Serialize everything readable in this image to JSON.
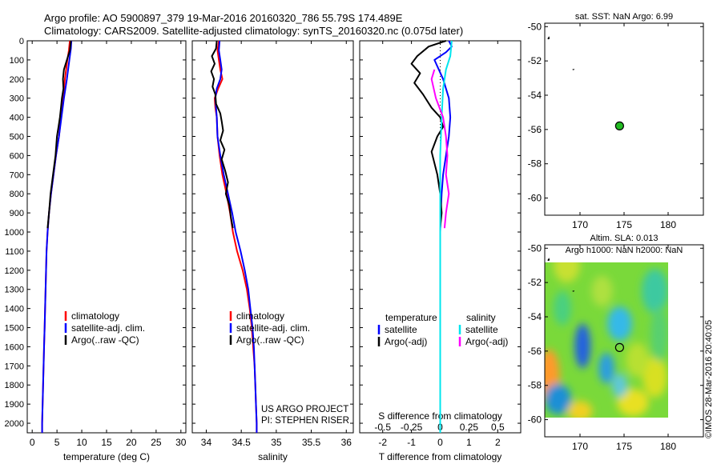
{
  "header": {
    "line1": "Argo profile: AO 5900897_379 19-Mar-2016 20160320_786 55.79S 174.489E",
    "line2": "Climatology: CARS2009. Satellite-adjusted climatology: synTS_20160320.nc (0.075d later)"
  },
  "side_note": "©IMOS 28-Mar-2016 20:40:05",
  "project": {
    "line1": "US ARGO PROJECT",
    "line2": "PI: STEPHEN RISER"
  },
  "colors": {
    "climatology": "#ff0000",
    "satellite": "#0000ff",
    "argo": "#000000",
    "salinity_satellite": "#00e5ee",
    "salinity_argo": "#ff00ff",
    "float_marker": "#22bb22"
  },
  "chart_data": [
    {
      "id": "temperature",
      "type": "line",
      "xlabel": "temperature (deg C)",
      "xlim": [
        -1,
        31
      ],
      "ylim": [
        2050,
        0
      ],
      "xticks": [
        0,
        5,
        10,
        15,
        20,
        25,
        30
      ],
      "yticks": [
        0,
        100,
        200,
        300,
        400,
        500,
        600,
        700,
        800,
        900,
        1000,
        1100,
        1200,
        1300,
        1400,
        1500,
        1600,
        1700,
        1800,
        1900,
        2000
      ],
      "legend": [
        "climatology",
        "satellite-adj. clim.",
        "Argo(..raw -QC)"
      ],
      "series": [
        {
          "name": "climatology",
          "color": "#ff0000",
          "points": [
            [
              7.6,
              0
            ],
            [
              7.4,
              50
            ],
            [
              7.1,
              100
            ],
            [
              6.6,
              200
            ],
            [
              6.2,
              300
            ],
            [
              5.8,
              400
            ],
            [
              5.4,
              500
            ],
            [
              4.8,
              600
            ],
            [
              4.3,
              700
            ],
            [
              3.8,
              800
            ],
            [
              3.4,
              900
            ],
            [
              3.1,
              1000
            ],
            [
              2.9,
              1100
            ],
            [
              2.8,
              1200
            ],
            [
              2.7,
              1300
            ],
            [
              2.6,
              1400
            ],
            [
              2.5,
              1500
            ],
            [
              2.4,
              1600
            ],
            [
              2.3,
              1700
            ],
            [
              2.2,
              1800
            ],
            [
              2.1,
              1900
            ],
            [
              2.0,
              2000
            ],
            [
              2.0,
              2050
            ]
          ]
        },
        {
          "name": "satellite-adj. clim.",
          "color": "#0000ff",
          "points": [
            [
              7.9,
              0
            ],
            [
              7.8,
              40
            ],
            [
              7.5,
              100
            ],
            [
              7.0,
              200
            ],
            [
              6.4,
              300
            ],
            [
              5.9,
              400
            ],
            [
              5.4,
              500
            ],
            [
              4.8,
              600
            ],
            [
              4.3,
              700
            ],
            [
              3.8,
              800
            ],
            [
              3.4,
              900
            ],
            [
              3.1,
              1000
            ],
            [
              2.9,
              1100
            ],
            [
              2.8,
              1200
            ],
            [
              2.7,
              1300
            ],
            [
              2.6,
              1400
            ],
            [
              2.5,
              1500
            ],
            [
              2.4,
              1600
            ],
            [
              2.3,
              1700
            ],
            [
              2.2,
              1800
            ],
            [
              2.1,
              1900
            ],
            [
              2.0,
              2000
            ],
            [
              2.0,
              2050
            ]
          ]
        },
        {
          "name": "Argo(..raw -QC)",
          "color": "#000000",
          "points": [
            [
              7.8,
              0
            ],
            [
              7.6,
              50
            ],
            [
              7.0,
              100
            ],
            [
              6.4,
              150
            ],
            [
              6.2,
              200
            ],
            [
              6.3,
              250
            ],
            [
              6.0,
              300
            ],
            [
              5.8,
              350
            ],
            [
              5.6,
              400
            ],
            [
              5.3,
              450
            ],
            [
              5.0,
              500
            ],
            [
              4.7,
              600
            ],
            [
              4.2,
              700
            ],
            [
              3.7,
              800
            ],
            [
              3.4,
              900
            ],
            [
              3.1,
              980
            ]
          ]
        }
      ]
    },
    {
      "id": "salinity",
      "type": "line",
      "xlabel": "salinity",
      "xlim": [
        33.8,
        36.1
      ],
      "ylim": [
        2050,
        0
      ],
      "xticks": [
        34,
        34.5,
        35,
        35.5,
        36
      ],
      "legend": [
        "climatology",
        "satellite-adj. clim.",
        "Argo(..raw -QC)"
      ],
      "series": [
        {
          "name": "climatology",
          "color": "#ff0000",
          "points": [
            [
              34.18,
              0
            ],
            [
              34.16,
              50
            ],
            [
              34.18,
              100
            ],
            [
              34.2,
              150
            ],
            [
              34.23,
              200
            ],
            [
              34.17,
              250
            ],
            [
              34.12,
              300
            ],
            [
              34.13,
              350
            ],
            [
              34.15,
              400
            ],
            [
              34.16,
              500
            ],
            [
              34.19,
              600
            ],
            [
              34.23,
              700
            ],
            [
              34.29,
              800
            ],
            [
              34.34,
              900
            ],
            [
              34.38,
              1000
            ],
            [
              34.44,
              1100
            ],
            [
              34.52,
              1200
            ],
            [
              34.58,
              1300
            ],
            [
              34.62,
              1400
            ],
            [
              34.65,
              1500
            ],
            [
              34.67,
              1600
            ],
            [
              34.69,
              1700
            ],
            [
              34.7,
              1800
            ],
            [
              34.71,
              1900
            ],
            [
              34.72,
              2000
            ],
            [
              34.72,
              2050
            ]
          ]
        },
        {
          "name": "satellite-adj. clim.",
          "color": "#0000ff",
          "points": [
            [
              34.19,
              0
            ],
            [
              34.18,
              50
            ],
            [
              34.2,
              100
            ],
            [
              34.22,
              150
            ],
            [
              34.2,
              200
            ],
            [
              34.15,
              250
            ],
            [
              34.13,
              300
            ],
            [
              34.14,
              350
            ],
            [
              34.15,
              400
            ],
            [
              34.16,
              500
            ],
            [
              34.2,
              600
            ],
            [
              34.25,
              700
            ],
            [
              34.31,
              800
            ],
            [
              34.37,
              900
            ],
            [
              34.42,
              1000
            ],
            [
              34.49,
              1100
            ],
            [
              34.55,
              1200
            ],
            [
              34.6,
              1300
            ],
            [
              34.63,
              1400
            ],
            [
              34.66,
              1500
            ],
            [
              34.68,
              1600
            ],
            [
              34.69,
              1700
            ],
            [
              34.7,
              1800
            ],
            [
              34.71,
              1900
            ],
            [
              34.72,
              2000
            ],
            [
              34.72,
              2050
            ]
          ]
        },
        {
          "name": "Argo(..raw -QC)",
          "color": "#000000",
          "points": [
            [
              34.15,
              0
            ],
            [
              34.14,
              40
            ],
            [
              34.08,
              80
            ],
            [
              34.12,
              120
            ],
            [
              34.07,
              160
            ],
            [
              34.11,
              200
            ],
            [
              34.09,
              240
            ],
            [
              34.13,
              280
            ],
            [
              34.14,
              330
            ],
            [
              34.2,
              380
            ],
            [
              34.22,
              420
            ],
            [
              34.24,
              470
            ],
            [
              34.2,
              520
            ],
            [
              34.26,
              570
            ],
            [
              34.22,
              620
            ],
            [
              34.27,
              680
            ],
            [
              34.31,
              740
            ],
            [
              34.28,
              800
            ],
            [
              34.33,
              860
            ],
            [
              34.35,
              920
            ],
            [
              34.38,
              980
            ]
          ]
        }
      ]
    },
    {
      "id": "difference",
      "type": "line",
      "xlabel": "T difference from climatology",
      "top_label": "S difference from climatology",
      "xlim": [
        -2.8,
        2.8
      ],
      "ylim": [
        2050,
        0
      ],
      "xticks": [
        -2,
        -1,
        0,
        1,
        2
      ],
      "top_ticks": [
        "-0.5",
        "-0.25",
        "0",
        "0.25",
        "0.5"
      ],
      "legend_temperature_title": "temperature",
      "legend_salinity_title": "salinity",
      "legend": [
        "satellite",
        "Argo(-adj)",
        "satellite",
        "Argo(-adj)"
      ],
      "series": [
        {
          "name": "temperature satellite",
          "color": "#0000ff",
          "points": [
            [
              0.3,
              0
            ],
            [
              0.4,
              30
            ],
            [
              0.2,
              60
            ],
            [
              -0.2,
              100
            ],
            [
              0.1,
              200
            ],
            [
              0.3,
              300
            ],
            [
              0.35,
              400
            ],
            [
              0.3,
              500
            ],
            [
              0.2,
              600
            ],
            [
              0.1,
              700
            ],
            [
              0.05,
              800
            ],
            [
              0.02,
              900
            ],
            [
              0.0,
              1000
            ],
            [
              0.0,
              1500
            ],
            [
              0.0,
              2050
            ]
          ]
        },
        {
          "name": "temperature Argo(-adj)",
          "color": "#000000",
          "points": [
            [
              0.2,
              0
            ],
            [
              -0.4,
              30
            ],
            [
              -0.8,
              80
            ],
            [
              -1.0,
              120
            ],
            [
              -0.7,
              170
            ],
            [
              -0.9,
              220
            ],
            [
              -0.6,
              280
            ],
            [
              -0.3,
              350
            ],
            [
              0.0,
              400
            ],
            [
              0.1,
              450
            ],
            [
              -0.1,
              500
            ],
            [
              -0.3,
              580
            ],
            [
              -0.1,
              700
            ],
            [
              0.0,
              800
            ],
            [
              0.05,
              900
            ],
            [
              0.0,
              980
            ]
          ]
        },
        {
          "name": "salinity satellite",
          "color": "#00e5ee",
          "points": [
            [
              0.4,
              0
            ],
            [
              0.35,
              80
            ],
            [
              0.2,
              150
            ],
            [
              0.1,
              250
            ],
            [
              0.05,
              400
            ],
            [
              0.0,
              600
            ],
            [
              0.0,
              1000
            ],
            [
              0.0,
              1500
            ],
            [
              0.0,
              2050
            ]
          ]
        },
        {
          "name": "salinity Argo(-adj)",
          "color": "#ff00ff",
          "points": [
            [
              -0.2,
              150
            ],
            [
              -0.3,
              200
            ],
            [
              -0.15,
              300
            ],
            [
              0.1,
              400
            ],
            [
              0.2,
              500
            ],
            [
              0.25,
              600
            ],
            [
              0.2,
              700
            ],
            [
              0.3,
              800
            ],
            [
              0.2,
              900
            ],
            [
              0.15,
              980
            ]
          ]
        }
      ]
    },
    {
      "id": "sst_map",
      "type": "scatter",
      "title": "sat. SST: NaN Argo: 6.99",
      "xlim": [
        166,
        184
      ],
      "ylim": [
        -61,
        -49.8
      ],
      "xticks": [
        170,
        175,
        180
      ],
      "yticks": [
        -50,
        -52,
        -54,
        -56,
        -58,
        -60
      ],
      "float_position": [
        174.489,
        -55.79
      ]
    },
    {
      "id": "sla_map",
      "type": "heatmap",
      "title_line1": "Altim. SLA: 0.013",
      "title_line2": "Argo h1000: NaN h2000: NaN",
      "xlim": [
        166,
        184
      ],
      "ylim": [
        -61,
        -49.8
      ],
      "data_xlim": [
        166,
        180
      ],
      "data_ylim": [
        -60,
        -49.8
      ],
      "xticks": [
        170,
        175,
        180
      ],
      "yticks": [
        -50,
        -52,
        -54,
        -56,
        -58,
        -60
      ],
      "float_position": [
        174.489,
        -55.79
      ]
    }
  ]
}
